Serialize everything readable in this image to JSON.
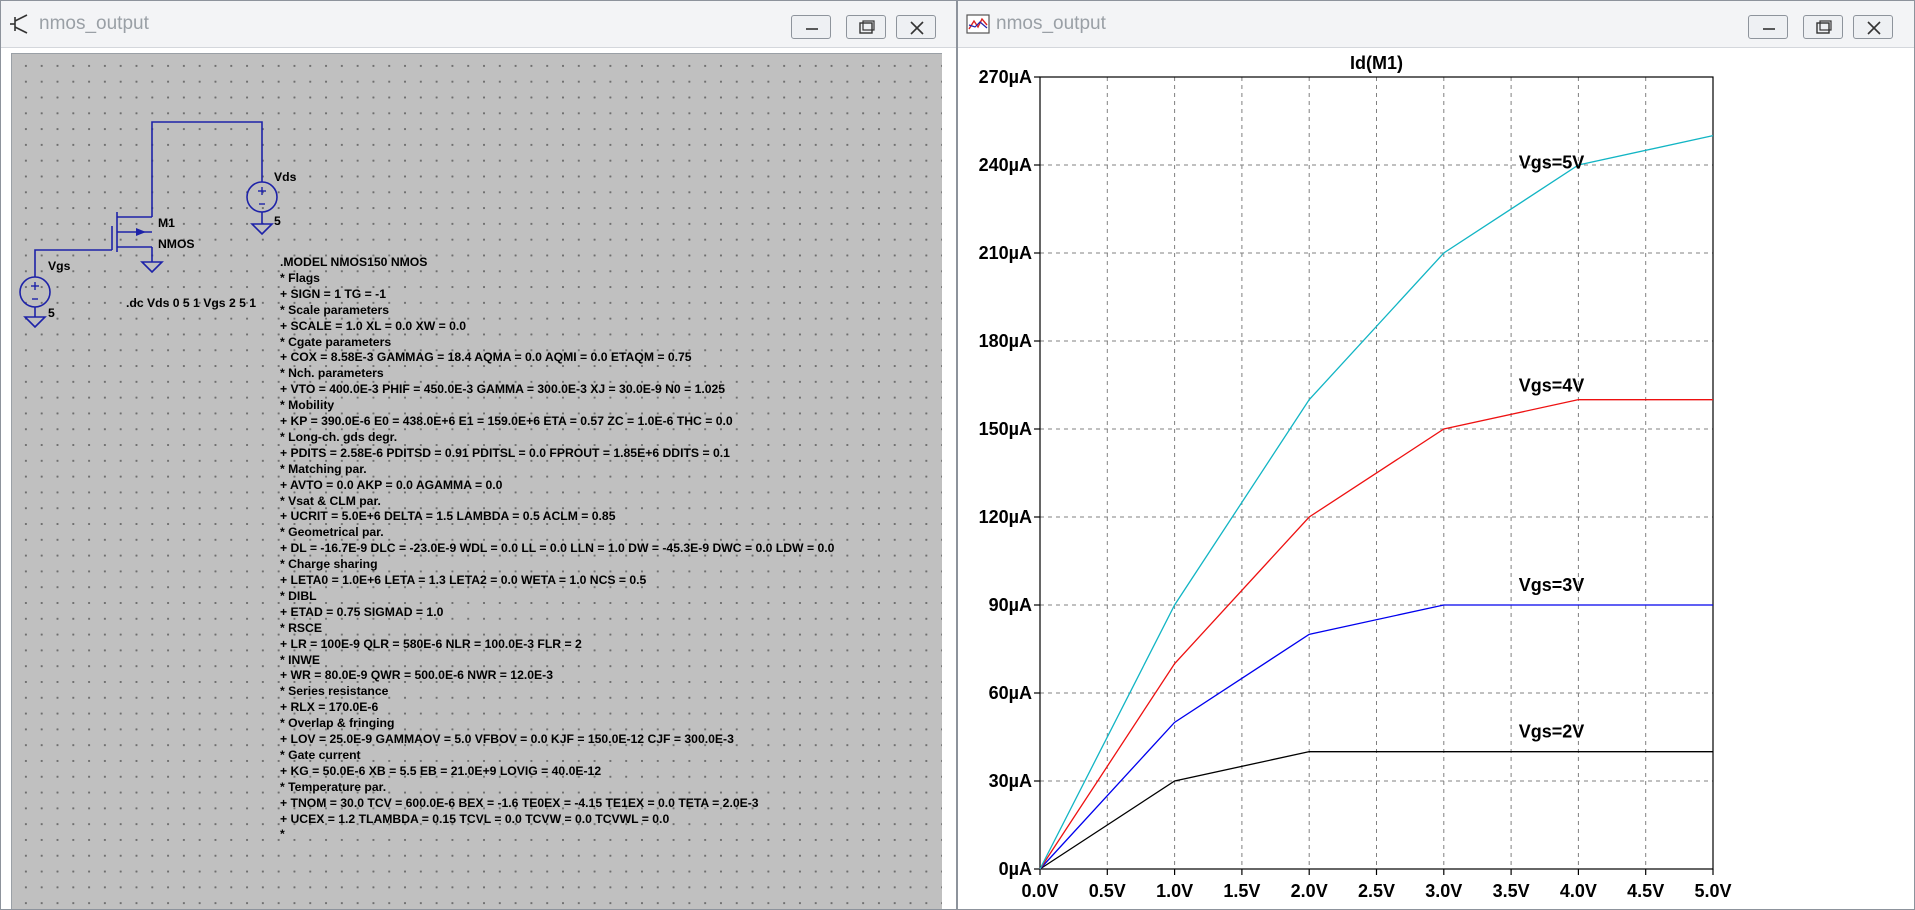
{
  "schematic_window": {
    "title": "nmos_output",
    "components": {
      "m1_name": "M1",
      "m1_model": "NMOS",
      "vgs_name": "Vgs",
      "vgs_value": "5",
      "vds_name": "Vds",
      "vds_value": "5"
    },
    "directive": ".dc Vds 0 5 1 Vgs 2 5 1",
    "model_lines": [
      ".MODEL NMOS150 NMOS",
      "* Flags",
      "+ SIGN = 1 TG = -1",
      "* Scale parameters",
      "+ SCALE = 1.0 XL = 0.0 XW = 0.0",
      "* Cgate parameters",
      "+ COX = 8.58E-3 GAMMAG = 18.4 AQMA = 0.0 AQMI = 0.0 ETAQM = 0.75",
      "* Nch. parameters",
      "+ VTO = 400.0E-3 PHIF = 450.0E-3 GAMMA = 300.0E-3 XJ = 30.0E-9 N0 = 1.025",
      "* Mobility",
      "+ KP = 390.0E-6 E0 = 438.0E+6 E1 = 159.0E+6 ETA = 0.57 ZC = 1.0E-6 THC = 0.0",
      "* Long-ch. gds degr.",
      "+ PDITS = 2.58E-6 PDITSD = 0.91 PDITSL = 0.0 FPROUT = 1.85E+6 DDITS = 0.1",
      "* Matching par.",
      "+ AVTO = 0.0 AKP = 0.0 AGAMMA = 0.0",
      "* Vsat & CLM par.",
      "+ UCRIT = 5.0E+6 DELTA = 1.5 LAMBDA = 0.5 ACLM = 0.85",
      "* Geometrical par.",
      "+ DL = -16.7E-9 DLC = -23.0E-9 WDL = 0.0 LL = 0.0 LLN = 1.0 DW = -45.3E-9 DWC = 0.0 LDW = 0.0",
      "* Charge sharing",
      "+ LETA0 = 1.0E+6 LETA = 1.3 LETA2 = 0.0 WETA = 1.0 NCS = 0.5",
      "* DIBL",
      "+ ETAD = 0.75 SIGMAD = 1.0",
      "* RSCE",
      "+ LR = 100E-9 QLR = 580E-6 NLR = 100.0E-3 FLR = 2",
      "* INWE",
      "+ WR = 80.0E-9 QWR = 500.0E-6 NWR = 12.0E-3",
      "* Series resistance",
      "+ RLX = 170.0E-6",
      "* Overlap & fringing",
      "+ LOV = 25.0E-9 GAMMAOV = 5.0 VFBOV = 0.0 KJF = 150.0E-12 CJF = 300.0E-3",
      "* Gate current",
      "+ KG = 50.0E-6 XB = 5.5 EB = 21.0E+9 LOVIG = 40.0E-12",
      "* Temperature par.",
      "+ TNOM = 30.0 TCV = 600.0E-6 BEX = -1.6 TE0EX = -4.15 TE1EX = 0.0 TETA = 2.0E-3",
      "+ UCEX = 1.2 TLAMBDA = 0.15 TCVL = 0.0 TCVW = 0.0 TCVWL = 0.0",
      "*"
    ]
  },
  "plot_window": {
    "title": "nmos_output"
  },
  "wire_color": "#1d22a8",
  "chart_data": {
    "type": "line",
    "title": "Id(M1)",
    "x_ticks": [
      "0.0V",
      "0.5V",
      "1.0V",
      "1.5V",
      "2.0V",
      "2.5V",
      "3.0V",
      "3.5V",
      "4.0V",
      "4.5V",
      "5.0V"
    ],
    "y_ticks": [
      "0µA",
      "30µA",
      "60µA",
      "90µA",
      "120µA",
      "150µA",
      "180µA",
      "210µA",
      "240µA",
      "270µA"
    ],
    "xlim": [
      0,
      5
    ],
    "ylim": [
      0,
      270
    ],
    "grid": true,
    "x": [
      0,
      1,
      2,
      3,
      4,
      5
    ],
    "series": [
      {
        "name": "Vgs=2V",
        "color": "#000000",
        "values": [
          0,
          30,
          40,
          40,
          40,
          40
        ]
      },
      {
        "name": "Vgs=3V",
        "color": "#0000ee",
        "values": [
          0,
          50,
          80,
          90,
          90,
          90
        ]
      },
      {
        "name": "Vgs=4V",
        "color": "#ee1111",
        "values": [
          0,
          70,
          120,
          150,
          160,
          160
        ]
      },
      {
        "name": "Vgs=5V",
        "color": "#12b5c4",
        "values": [
          0,
          90,
          160,
          210,
          240,
          250
        ]
      }
    ]
  }
}
